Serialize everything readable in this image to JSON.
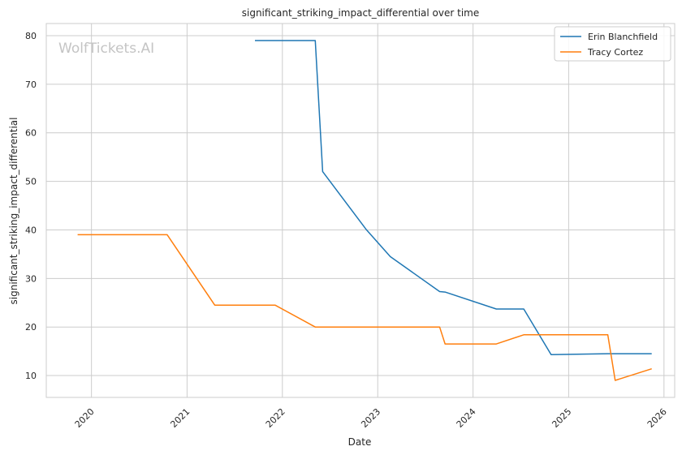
{
  "chart_data": {
    "type": "line",
    "title": "significant_striking_impact_differential over time",
    "xlabel": "Date",
    "ylabel": "significant_striking_impact_differential",
    "watermark": "WolfTickets.AI",
    "x_ticks": [
      "2020",
      "2021",
      "2022",
      "2023",
      "2024",
      "2025",
      "2026"
    ],
    "y_ticks": [
      10,
      20,
      30,
      40,
      50,
      60,
      70,
      80
    ],
    "xlim": [
      "2019-07-12",
      "2026-02-11"
    ],
    "ylim": [
      5.5,
      82.5
    ],
    "grid": true,
    "legend_position": "top-right",
    "series": [
      {
        "name": "Erin Blanchfield",
        "color": "#1f77b4",
        "points": [
          [
            "2021-09-18",
            79.0
          ],
          [
            "2022-05-07",
            79.0
          ],
          [
            "2022-06-04",
            52.0
          ],
          [
            "2022-11-19",
            40.0
          ],
          [
            "2023-02-18",
            34.5
          ],
          [
            "2023-08-26",
            27.3
          ],
          [
            "2023-09-16",
            27.2
          ],
          [
            "2024-03-30",
            23.7
          ],
          [
            "2024-07-13",
            23.7
          ],
          [
            "2024-10-26",
            14.3
          ],
          [
            "2025-05-31",
            14.5
          ],
          [
            "2025-11-15",
            14.5
          ]
        ]
      },
      {
        "name": "Tracy Cortez",
        "color": "#ff7f0e",
        "points": [
          [
            "2019-11-09",
            39.0
          ],
          [
            "2020-10-17",
            39.0
          ],
          [
            "2021-04-17",
            24.5
          ],
          [
            "2021-12-04",
            24.5
          ],
          [
            "2022-05-07",
            20.0
          ],
          [
            "2023-08-26",
            20.0
          ],
          [
            "2023-09-16",
            16.5
          ],
          [
            "2024-03-30",
            16.5
          ],
          [
            "2024-07-13",
            18.4
          ],
          [
            "2025-05-31",
            18.4
          ],
          [
            "2025-06-28",
            9.0
          ],
          [
            "2025-11-15",
            11.4
          ]
        ]
      }
    ]
  }
}
